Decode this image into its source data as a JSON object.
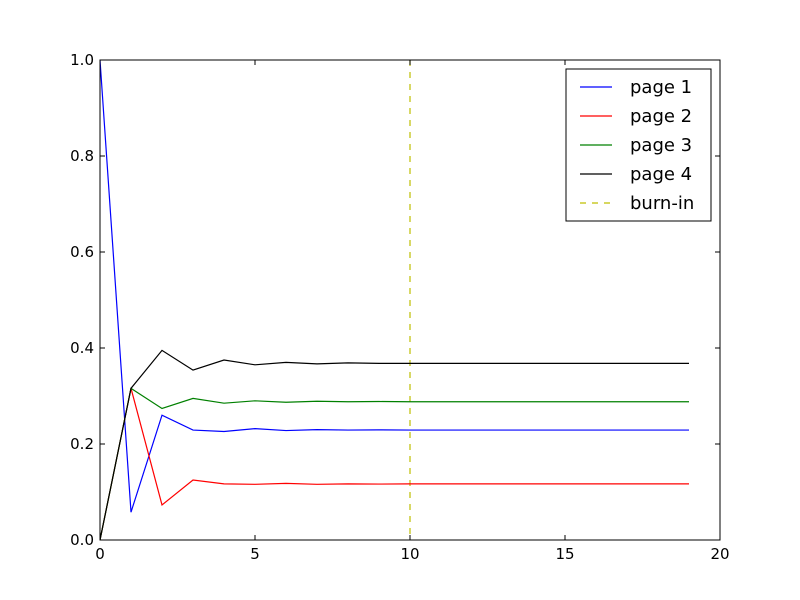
{
  "chart_data": {
    "type": "line",
    "title": "",
    "xlabel": "",
    "ylabel": "",
    "xlim": [
      0,
      20
    ],
    "ylim": [
      0,
      1.0
    ],
    "xticks": [
      0,
      5,
      10,
      15,
      20
    ],
    "yticks": [
      0.0,
      0.2,
      0.4,
      0.6,
      0.8,
      1.0
    ],
    "xtick_labels": [
      "0",
      "5",
      "10",
      "15",
      "20"
    ],
    "ytick_labels": [
      "0.0",
      "0.2",
      "0.4",
      "0.6",
      "0.8",
      "1.0"
    ],
    "grid": false,
    "legend_position": "top-right",
    "x": [
      0,
      1,
      2,
      3,
      4,
      5,
      6,
      7,
      8,
      9,
      10,
      11,
      12,
      13,
      14,
      15,
      16,
      17,
      18,
      19
    ],
    "series": [
      {
        "name": "page 1",
        "color": "#0000ff",
        "style": "solid",
        "values": [
          1.0,
          0.058,
          0.26,
          0.229,
          0.226,
          0.232,
          0.228,
          0.23,
          0.229,
          0.2295,
          0.229,
          0.229,
          0.229,
          0.229,
          0.229,
          0.229,
          0.229,
          0.229,
          0.229,
          0.229
        ]
      },
      {
        "name": "page 2",
        "color": "#ff0000",
        "style": "solid",
        "values": [
          0.0,
          0.316,
          0.073,
          0.125,
          0.117,
          0.116,
          0.118,
          0.116,
          0.117,
          0.1165,
          0.117,
          0.117,
          0.117,
          0.117,
          0.117,
          0.117,
          0.117,
          0.117,
          0.117,
          0.117
        ]
      },
      {
        "name": "page 3",
        "color": "#008000",
        "style": "solid",
        "values": [
          0.0,
          0.316,
          0.274,
          0.295,
          0.285,
          0.29,
          0.287,
          0.289,
          0.288,
          0.2885,
          0.288,
          0.288,
          0.288,
          0.288,
          0.288,
          0.288,
          0.288,
          0.288,
          0.288,
          0.288
        ]
      },
      {
        "name": "page 4",
        "color": "#000000",
        "style": "solid",
        "values": [
          0.0,
          0.316,
          0.395,
          0.354,
          0.375,
          0.365,
          0.37,
          0.367,
          0.369,
          0.368,
          0.368,
          0.368,
          0.368,
          0.368,
          0.368,
          0.368,
          0.368,
          0.368,
          0.368,
          0.368
        ]
      }
    ],
    "vlines": [
      {
        "name": "burn-in",
        "x": 10,
        "color": "#bfbf00",
        "style": "dashed"
      }
    ]
  }
}
